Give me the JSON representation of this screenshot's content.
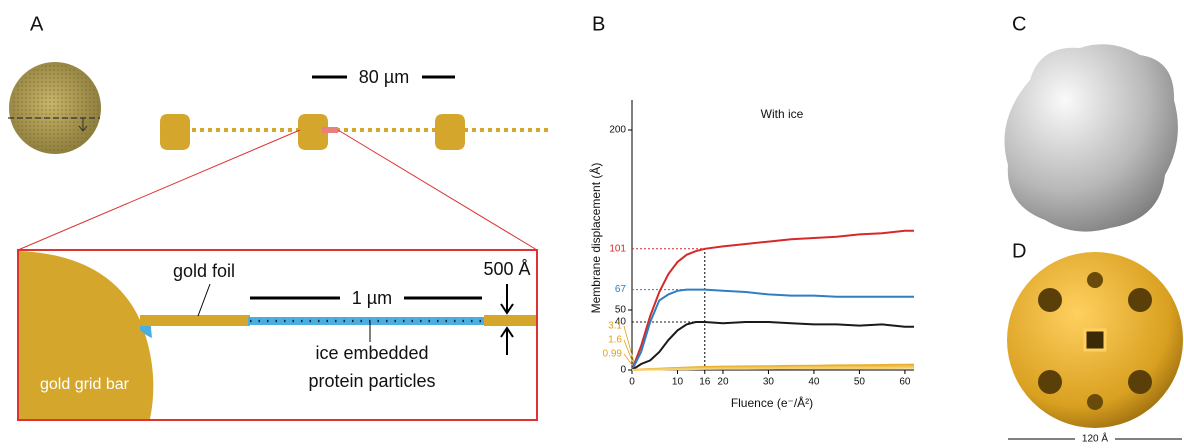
{
  "panel_labels": [
    "A",
    "B",
    "C",
    "D"
  ],
  "panel_a": {
    "scale_top": "80 µm",
    "gold_foil": "gold foil",
    "scale_inset": "1 µm",
    "thickness": "500 Å",
    "ice_label": [
      "ice embedded",
      "protein particles"
    ],
    "grid_bar": "gold grid bar"
  },
  "chart_data": {
    "type": "line",
    "title": "With ice",
    "x_label": "Fluence (e⁻/Å²)",
    "y_label": "Membrane displacement (Å)",
    "x": [
      0,
      2,
      4,
      6,
      8,
      10,
      12,
      14,
      16,
      20,
      25,
      30,
      35,
      40,
      45,
      50,
      55,
      60,
      62
    ],
    "series": [
      {
        "color": "#d42a2a",
        "values": [
          0,
          20,
          45,
          65,
          80,
          90,
          96,
          99,
          101,
          103,
          105,
          107,
          109,
          110,
          111,
          113,
          114,
          116,
          116
        ]
      },
      {
        "color": "#2f7fc1",
        "values": [
          0,
          15,
          40,
          58,
          63,
          66,
          67,
          67,
          67,
          66,
          65,
          63,
          62,
          62,
          61,
          61,
          61,
          61,
          61
        ]
      },
      {
        "color": "#1a1a1a",
        "values": [
          0,
          5,
          8,
          15,
          25,
          33,
          38,
          40,
          40,
          39,
          40,
          40,
          39,
          38,
          38,
          37,
          38,
          36,
          36
        ]
      },
      {
        "color": "#e8b030",
        "values": [
          0,
          0.5,
          0.8,
          1.1,
          1.4,
          1.7,
          2,
          2.3,
          2.5,
          2.8,
          3,
          3.2,
          3.4,
          3.6,
          3.8,
          4,
          4.2,
          4.4,
          4.5
        ]
      },
      {
        "color": "#f0c050",
        "values": [
          0,
          0.3,
          0.5,
          0.7,
          0.9,
          1.1,
          1.3,
          1.5,
          1.6,
          1.8,
          2,
          2.1,
          2.3,
          2.4,
          2.5,
          2.6,
          2.7,
          2.8,
          2.9
        ]
      },
      {
        "color": "#f5d070",
        "values": [
          0,
          0.2,
          0.3,
          0.4,
          0.5,
          0.6,
          0.7,
          0.8,
          0.9,
          1,
          1.1,
          1.2,
          1.3,
          1.4,
          1.5,
          1.6,
          1.7,
          1.8,
          1.8
        ]
      }
    ],
    "xlim": [
      0,
      62
    ],
    "ylim": [
      0,
      225
    ],
    "xticks": [
      0,
      10,
      16,
      20,
      30,
      40,
      50,
      60
    ],
    "yticks": [
      0,
      50,
      200
    ],
    "reference_x": 16,
    "reference_lines": [
      {
        "value": 101,
        "color": "#d42a2a"
      },
      {
        "value": 67,
        "color": "#2f7fc1"
      },
      {
        "value": 40,
        "color": "#1a1a1a"
      }
    ],
    "baseline_labels": [
      {
        "value": 3.1,
        "color": "#e0a020"
      },
      {
        "value": 1.6,
        "color": "#e0a020"
      },
      {
        "value": 0.99,
        "color": "#e0a020"
      }
    ]
  },
  "panel_d": {
    "scale": "120 Å"
  }
}
